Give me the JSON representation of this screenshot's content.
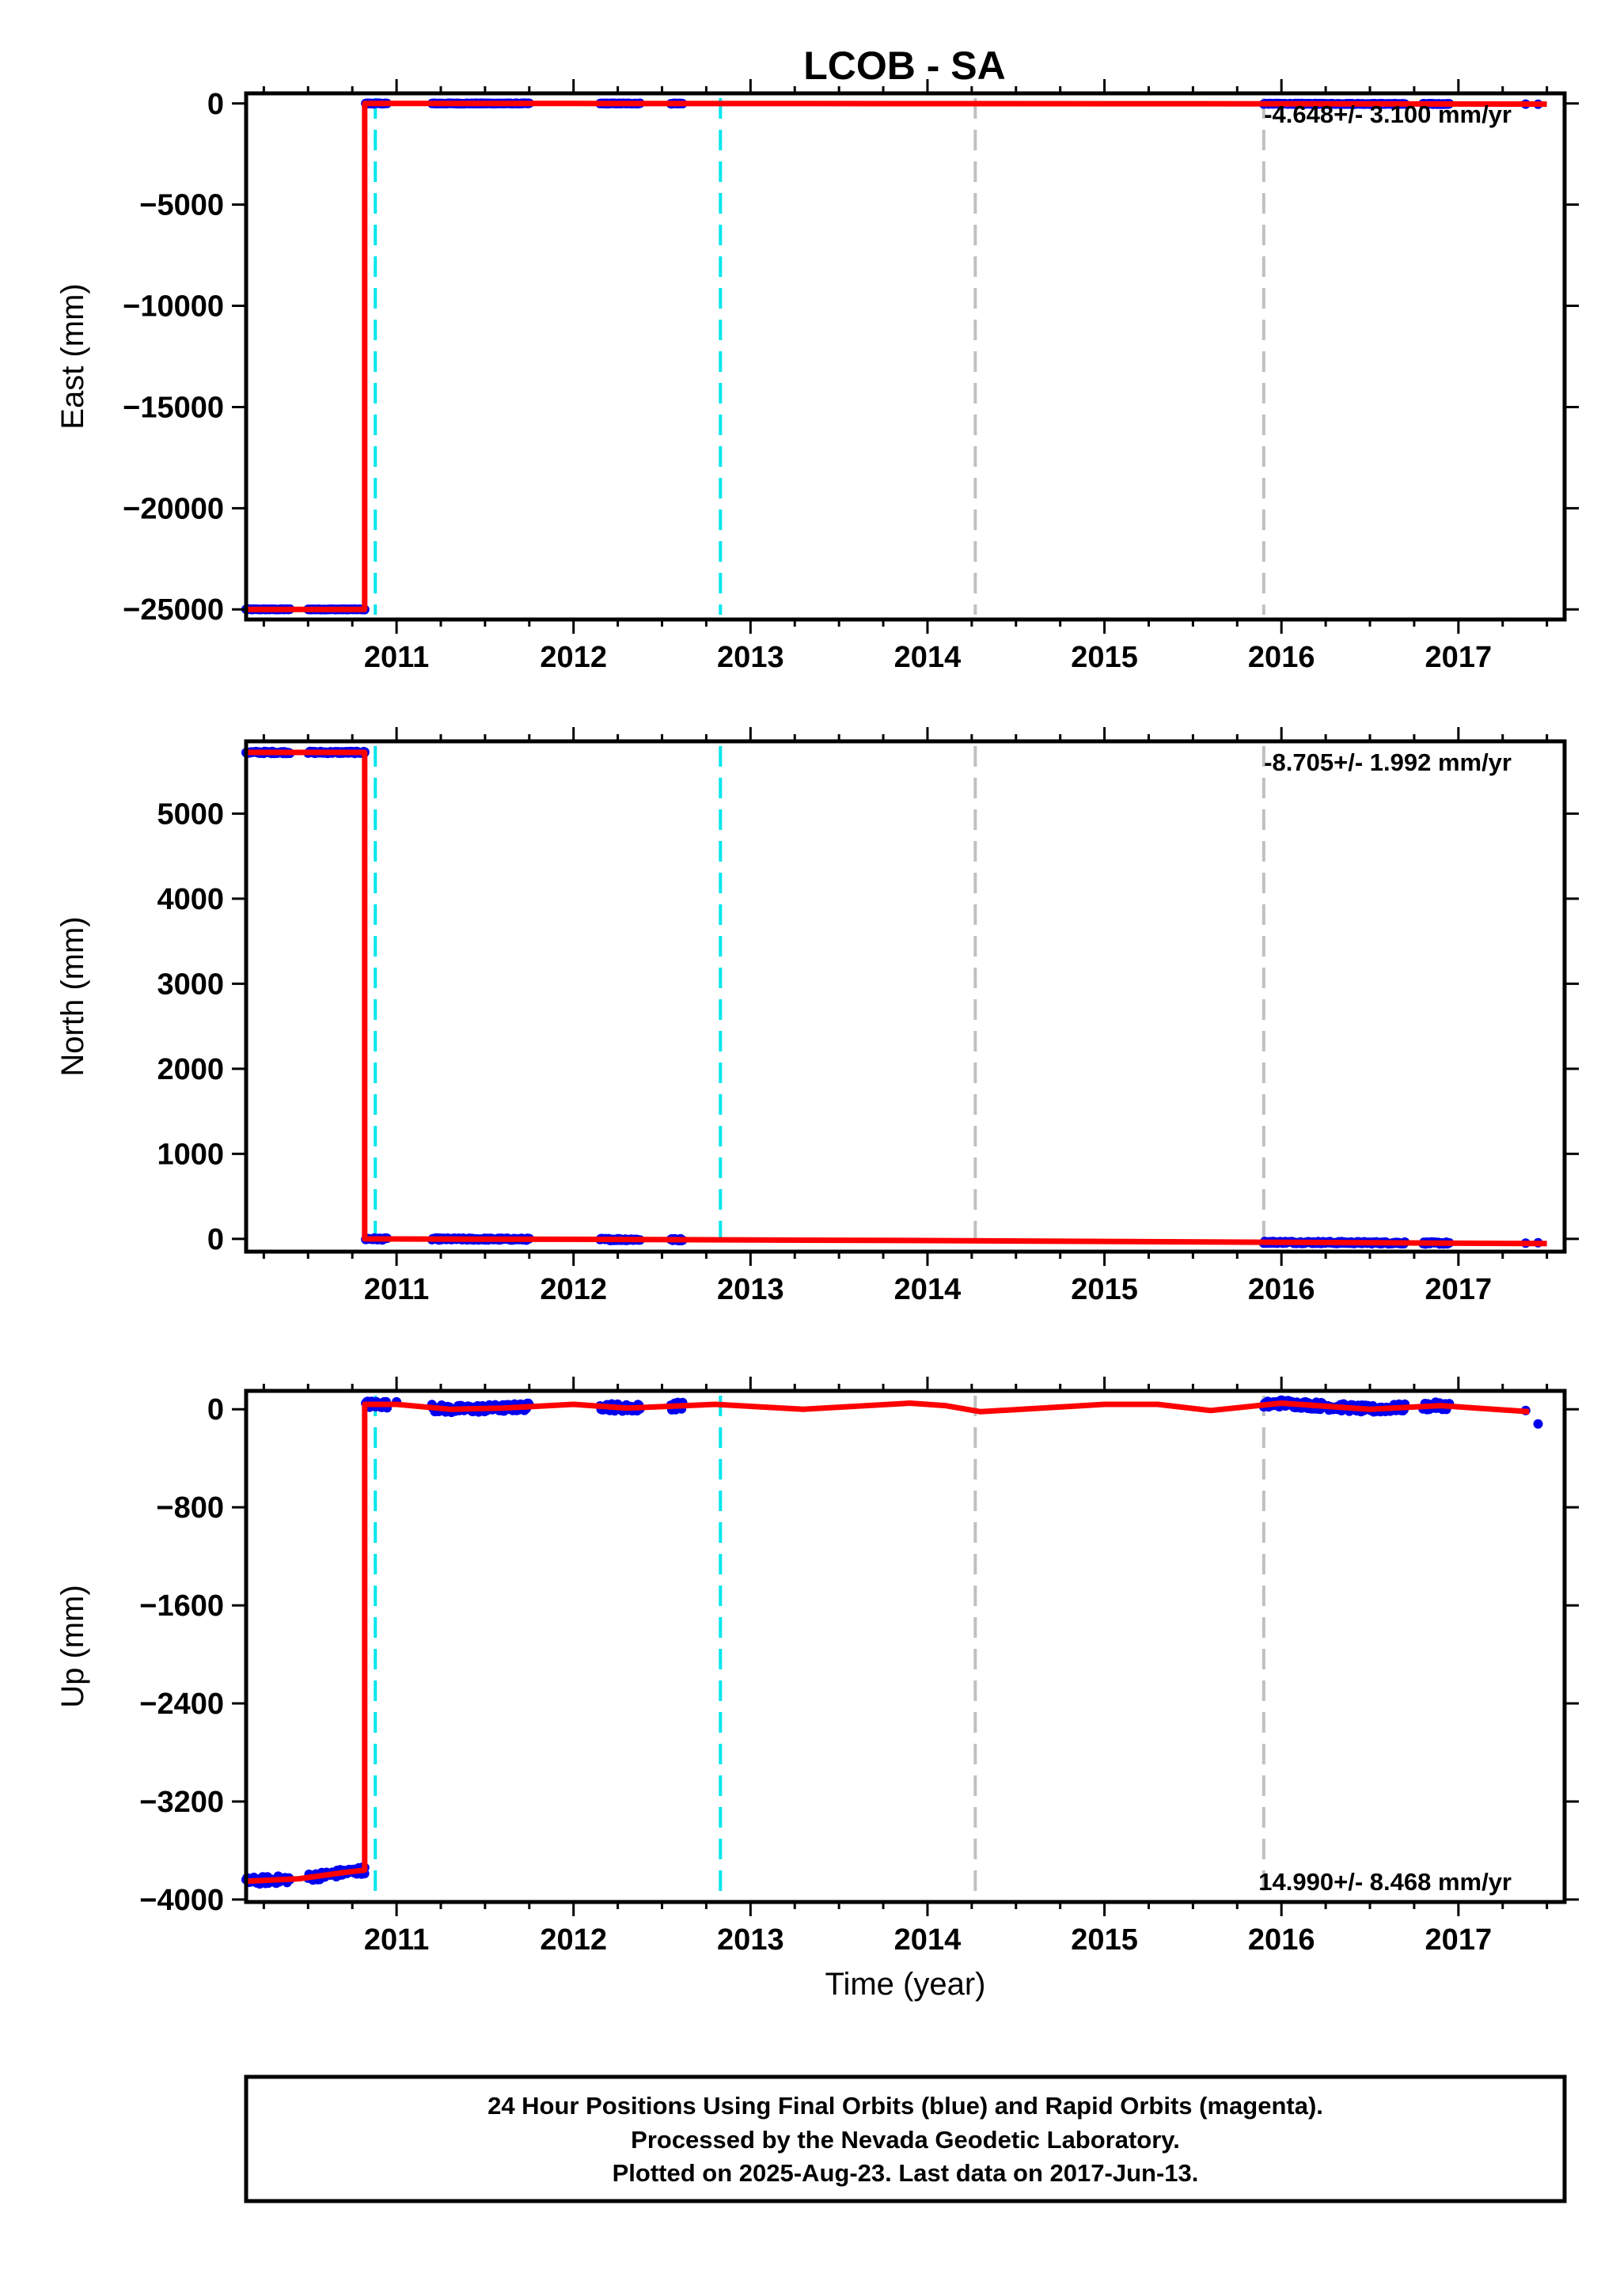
{
  "title": "LCOB - SA",
  "colors": {
    "final": "#0000ee",
    "model": "#ff0000",
    "rapid": "#ff00ff",
    "break_gray": "#c0c0c0",
    "break_cyan": "#00e5ee"
  },
  "chart_data": [
    {
      "type": "scatter",
      "name": "east",
      "ylabel": "East (mm)",
      "rate": "-4.648+/- 3.100 mm/yr",
      "rate_position": "top-right",
      "xlim": [
        2010.15,
        2017.6
      ],
      "ylim": [
        -25500,
        500
      ],
      "yticks": [
        0,
        -5000,
        -10000,
        -15000,
        -20000,
        -25000
      ],
      "ytick_labels": [
        "0",
        "−5000",
        "−10000",
        "−15000",
        "−20000",
        "−25000"
      ],
      "before_offset": -25000,
      "after_offset": 0,
      "noise": 15,
      "model": [
        [
          2010.15,
          -25000
        ],
        [
          2010.82,
          -25000
        ],
        [
          2010.82,
          0
        ],
        [
          2012.0,
          0
        ],
        [
          2014.3,
          -8
        ],
        [
          2016.0,
          -15
        ],
        [
          2017.5,
          -30
        ]
      ],
      "final_segments": [
        [
          2010.15,
          2010.4
        ],
        [
          2010.5,
          2010.82
        ],
        [
          2010.82,
          2010.95
        ],
        [
          2011.2,
          2011.75
        ],
        [
          2012.15,
          2012.38
        ],
        [
          2012.55,
          2012.62
        ],
        [
          2015.9,
          2016.7
        ],
        [
          2016.8,
          2016.95
        ]
      ],
      "final_isolated": [
        [
          2017.38,
          -30
        ],
        [
          2017.45,
          -35
        ]
      ]
    },
    {
      "type": "scatter",
      "name": "north",
      "ylabel": "North (mm)",
      "rate": "-8.705+/- 1.992 mm/yr",
      "rate_position": "top-right",
      "xlim": [
        2010.15,
        2017.6
      ],
      "ylim": [
        -150,
        5850
      ],
      "yticks": [
        0,
        1000,
        2000,
        3000,
        4000,
        5000
      ],
      "ytick_labels": [
        "0",
        "1000",
        "2000",
        "3000",
        "4000",
        "5000"
      ],
      "before_offset": 5720,
      "after_offset": 0,
      "noise": 12,
      "model": [
        [
          2010.15,
          5720
        ],
        [
          2010.82,
          5720
        ],
        [
          2010.82,
          0
        ],
        [
          2012.0,
          -5
        ],
        [
          2014.0,
          -20
        ],
        [
          2016.0,
          -40
        ],
        [
          2017.5,
          -55
        ]
      ],
      "final_segments": [
        [
          2010.15,
          2010.4
        ],
        [
          2010.5,
          2010.82
        ],
        [
          2010.82,
          2010.95
        ],
        [
          2011.2,
          2011.75
        ],
        [
          2012.15,
          2012.38
        ],
        [
          2012.55,
          2012.62
        ],
        [
          2015.9,
          2016.7
        ],
        [
          2016.8,
          2016.95
        ]
      ],
      "final_isolated": [
        [
          2017.38,
          -50
        ],
        [
          2017.45,
          -45
        ]
      ]
    },
    {
      "type": "scatter",
      "name": "up",
      "ylabel": "Up (mm)",
      "rate": "14.990+/- 8.468 mm/yr",
      "rate_position": "bottom-right",
      "xlabel": "Time (year)",
      "xlim": [
        2010.15,
        2017.6
      ],
      "ylim": [
        -4020,
        150
      ],
      "yticks": [
        0,
        -800,
        -1600,
        -2400,
        -3200,
        -4000
      ],
      "ytick_labels": [
        "0",
        "−800",
        "−1600",
        "−2400",
        "−3200",
        "−4000"
      ],
      "before_offset": -3800,
      "after_offset": 0,
      "noise": 30,
      "model": [
        [
          2010.15,
          -3850
        ],
        [
          2010.45,
          -3830
        ],
        [
          2010.7,
          -3780
        ],
        [
          2010.82,
          -3760
        ],
        [
          2010.82,
          40
        ],
        [
          2011.0,
          40
        ],
        [
          2011.3,
          0
        ],
        [
          2011.6,
          10
        ],
        [
          2012.0,
          40
        ],
        [
          2012.3,
          10
        ],
        [
          2012.8,
          40
        ],
        [
          2013.3,
          0
        ],
        [
          2013.9,
          50
        ],
        [
          2014.1,
          30
        ],
        [
          2014.3,
          -20
        ],
        [
          2015.0,
          40
        ],
        [
          2015.3,
          40
        ],
        [
          2015.6,
          -10
        ],
        [
          2016.0,
          50
        ],
        [
          2016.5,
          0
        ],
        [
          2016.9,
          30
        ],
        [
          2017.4,
          -20
        ]
      ],
      "final_segments": [
        [
          2010.15,
          2010.4
        ],
        [
          2010.5,
          2010.82
        ],
        [
          2010.82,
          2010.95
        ],
        [
          2011.2,
          2011.75
        ],
        [
          2012.15,
          2012.38
        ],
        [
          2012.55,
          2012.62
        ],
        [
          2015.9,
          2016.7
        ],
        [
          2016.8,
          2016.95
        ]
      ],
      "final_isolated": [
        [
          2011.0,
          60
        ],
        [
          2017.38,
          -10
        ],
        [
          2017.45,
          -120
        ]
      ]
    }
  ],
  "x_ticks": [
    2011,
    2012,
    2013,
    2014,
    2015,
    2016,
    2017
  ],
  "x_tick_labels": [
    "2011",
    "2012",
    "2013",
    "2014",
    "2015",
    "2016",
    "2017"
  ],
  "breaks_gray": [
    2010.15,
    2014.27,
    2015.9
  ],
  "breaks_cyan": [
    2010.88,
    2012.83
  ],
  "footer": {
    "line1": "24 Hour Positions Using Final Orbits (blue) and Rapid Orbits (magenta).",
    "line2": "Processed by the Nevada Geodetic Laboratory.",
    "line3": "Plotted on 2025-Aug-23. Last data on 2017-Jun-13."
  }
}
